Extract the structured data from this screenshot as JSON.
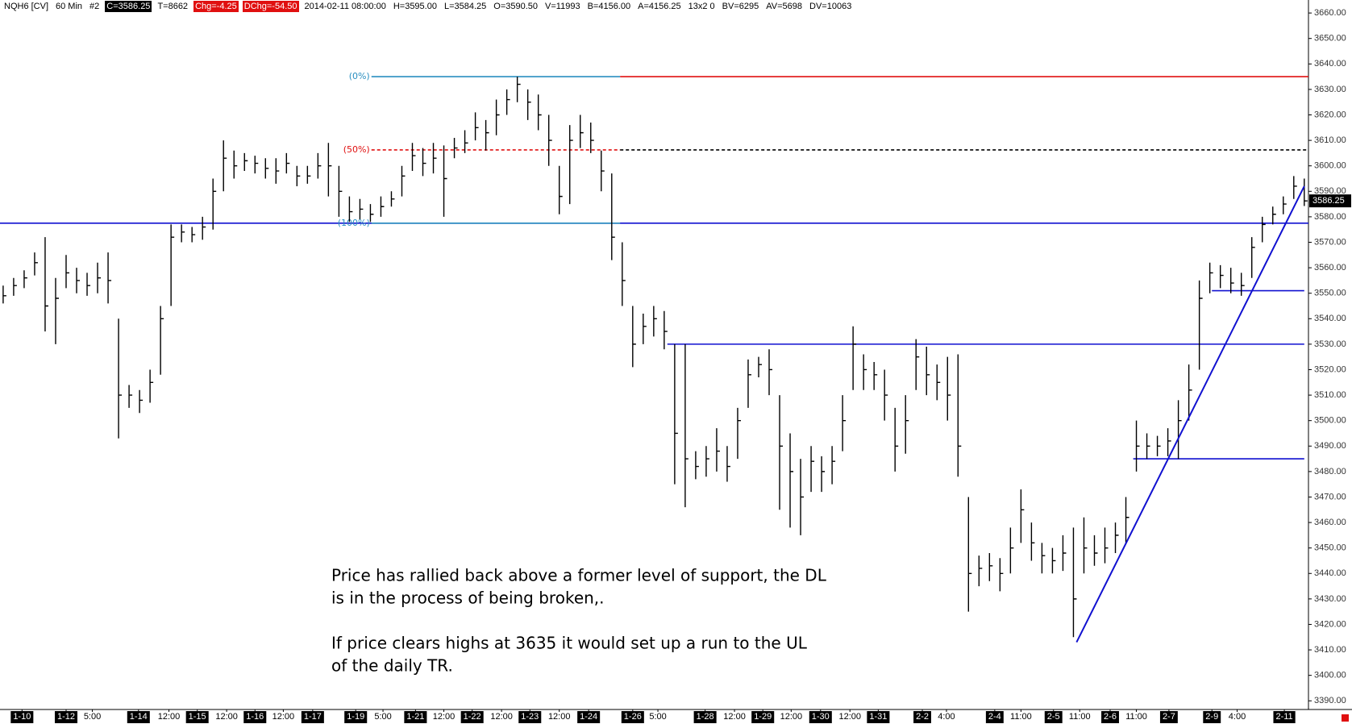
{
  "chart_data": {
    "type": "ohlc",
    "header": [
      {
        "text": "NQH6 [CV]",
        "style": "plain"
      },
      {
        "text": "60 Min",
        "style": "plain"
      },
      {
        "text": "#2",
        "style": "plain"
      },
      {
        "text": "C=3586.25",
        "style": "dark"
      },
      {
        "text": "T=8662",
        "style": "plain"
      },
      {
        "text": "Chg=-4.25",
        "style": "red"
      },
      {
        "text": "DChg=-54.50",
        "style": "red"
      },
      {
        "text": "2014-02-11 08:00:00",
        "style": "plain"
      },
      {
        "text": "H=3595.00",
        "style": "plain"
      },
      {
        "text": "L=3584.25",
        "style": "plain"
      },
      {
        "text": "O=3590.50",
        "style": "plain"
      },
      {
        "text": "V=11993",
        "style": "plain"
      },
      {
        "text": "B=4156.00",
        "style": "plain"
      },
      {
        "text": "A=4156.25",
        "style": "plain"
      },
      {
        "text": "13x2 0",
        "style": "plain"
      },
      {
        "text": "BV=6295",
        "style": "plain"
      },
      {
        "text": "AV=5698",
        "style": "plain"
      },
      {
        "text": "DV=10063",
        "style": "plain"
      }
    ],
    "color": "#000000",
    "high": [
      3553,
      3556,
      3559,
      3566,
      3572,
      3556,
      3565,
      3560,
      3558,
      3562,
      3566,
      3540,
      3514,
      3512,
      3520,
      3545,
      3577,
      3577,
      3576,
      3580,
      3595,
      3610,
      3606,
      3605,
      3604,
      3603,
      3603,
      3605,
      3600,
      3600,
      3605,
      3609,
      3600,
      3588,
      3587,
      3585,
      3588,
      3590,
      3600,
      3609,
      3607,
      3609,
      3608,
      3611,
      3614,
      3621,
      3618,
      3626,
      3630,
      3635,
      3630,
      3628,
      3620,
      3600,
      3616,
      3620,
      3617,
      3606,
      3597,
      3570,
      3545,
      3542,
      3545,
      3543,
      3530,
      3530,
      3488,
      3490,
      3497,
      3490,
      3505,
      3524,
      3525,
      3528,
      3510,
      3495,
      3485,
      3490,
      3486,
      3490,
      3510,
      3537,
      3526,
      3523,
      3520,
      3505,
      3510,
      3532,
      3529,
      3522,
      3525,
      3526,
      3470,
      3447,
      3448,
      3446,
      3458,
      3473,
      3460,
      3452,
      3450,
      3455,
      3458,
      3462,
      3455,
      3458,
      3460,
      3470,
      3500,
      3495,
      3494,
      3497,
      3508,
      3522,
      3555,
      3562,
      3561,
      3560,
      3558,
      3572,
      3580,
      3584,
      3588,
      3596,
      3595
    ],
    "low": [
      3546,
      3549,
      3552,
      3557,
      3535,
      3530,
      3552,
      3550,
      3549,
      3550,
      3546,
      3493,
      3505,
      3503,
      3507,
      3518,
      3545,
      3570,
      3570,
      3571,
      3575,
      3590,
      3595,
      3598,
      3597,
      3595,
      3593,
      3597,
      3592,
      3593,
      3595,
      3588,
      3580,
      3578,
      3579,
      3578,
      3580,
      3584,
      3588,
      3598,
      3596,
      3597,
      3580,
      3603,
      3605,
      3610,
      3606,
      3612,
      3620,
      3625,
      3618,
      3614,
      3600,
      3581,
      3585,
      3607,
      3605,
      3590,
      3563,
      3545,
      3521,
      3530,
      3533,
      3528,
      3475,
      3466,
      3477,
      3478,
      3480,
      3476,
      3485,
      3505,
      3517,
      3510,
      3465,
      3458,
      3455,
      3472,
      3472,
      3475,
      3488,
      3512,
      3512,
      3512,
      3500,
      3480,
      3487,
      3512,
      3510,
      3508,
      3500,
      3478,
      3425,
      3435,
      3437,
      3433,
      3440,
      3452,
      3445,
      3440,
      3440,
      3441,
      3415,
      3440,
      3443,
      3444,
      3448,
      3452,
      3480,
      3485,
      3486,
      3486,
      3485,
      3500,
      3520,
      3550,
      3552,
      3550,
      3549,
      3556,
      3570,
      3577,
      3581,
      3587,
      3584.25
    ],
    "close": [
      3549,
      3553,
      3556,
      3562,
      3545,
      3548,
      3558,
      3555,
      3553,
      3556,
      3555,
      3510,
      3510,
      3508,
      3515,
      3540,
      3572,
      3574,
      3573,
      3576,
      3590,
      3603,
      3600,
      3602,
      3601,
      3599,
      3598,
      3601,
      3596,
      3596,
      3600,
      3600,
      3590,
      3582,
      3583,
      3581,
      3584,
      3587,
      3596,
      3604,
      3601,
      3603,
      3595,
      3607,
      3609,
      3615,
      3613,
      3620,
      3626,
      3632,
      3625,
      3620,
      3610,
      3588,
      3610,
      3613,
      3610,
      3598,
      3572,
      3555,
      3530,
      3537,
      3540,
      3535,
      3495,
      3485,
      3482,
      3485,
      3488,
      3482,
      3500,
      3518,
      3522,
      3520,
      3490,
      3480,
      3470,
      3484,
      3480,
      3484,
      3500,
      3530,
      3520,
      3518,
      3510,
      3490,
      3500,
      3525,
      3518,
      3515,
      3510,
      3490,
      3440,
      3442,
      3443,
      3440,
      3450,
      3465,
      3452,
      3447,
      3445,
      3448,
      3430,
      3450,
      3448,
      3450,
      3455,
      3462,
      3490,
      3490,
      3490,
      3492,
      3500,
      3512,
      3548,
      3558,
      3557,
      3554,
      3553,
      3568,
      3577,
      3581,
      3585,
      3592,
      3586.25
    ],
    "xlim": [
      -0.3,
      124.4
    ],
    "ylim": [
      3386.6,
      3665.1
    ],
    "yticks": [
      {
        "value": 3390,
        "label": "3390.00"
      },
      {
        "value": 3400,
        "label": "3400.00"
      },
      {
        "value": 3410,
        "label": "3410.00"
      },
      {
        "value": 3420,
        "label": "3420.00"
      },
      {
        "value": 3430,
        "label": "3430.00"
      },
      {
        "value": 3440,
        "label": "3440.00"
      },
      {
        "value": 3450,
        "label": "3450.00"
      },
      {
        "value": 3460,
        "label": "3460.00"
      },
      {
        "value": 3470,
        "label": "3470.00"
      },
      {
        "value": 3480,
        "label": "3480.00"
      },
      {
        "value": 3490,
        "label": "3490.00"
      },
      {
        "value": 3500,
        "label": "3500.00"
      },
      {
        "value": 3510,
        "label": "3510.00"
      },
      {
        "value": 3520,
        "label": "3520.00"
      },
      {
        "value": 3530,
        "label": "3530.00"
      },
      {
        "value": 3540,
        "label": "3540.00"
      },
      {
        "value": 3550,
        "label": "3550.00"
      },
      {
        "value": 3560,
        "label": "3560.00"
      },
      {
        "value": 3570,
        "label": "3570.00"
      },
      {
        "value": 3580,
        "label": "3580.00"
      },
      {
        "value": 3590,
        "label": "3590.00"
      },
      {
        "value": 3600,
        "label": "3600.00"
      },
      {
        "value": 3610,
        "label": "3610.00"
      },
      {
        "value": 3620,
        "label": "3620.00"
      },
      {
        "value": 3630,
        "label": "3630.00"
      },
      {
        "value": 3640,
        "label": "3640.00"
      },
      {
        "value": 3650,
        "label": "3650.00"
      },
      {
        "value": 3660,
        "label": "3660.00"
      }
    ],
    "xticks": [
      {
        "value": 1.8,
        "label": "1-10"
      },
      {
        "value": 6,
        "label": "1-12"
      },
      {
        "value": 12.9,
        "label": "1-14"
      },
      {
        "value": 18.5,
        "label": "1-15"
      },
      {
        "value": 24,
        "label": "1-16"
      },
      {
        "value": 29.5,
        "label": "1-17"
      },
      {
        "value": 33.6,
        "label": "1-19"
      },
      {
        "value": 39.3,
        "label": "1-21"
      },
      {
        "value": 44.7,
        "label": "1-22"
      },
      {
        "value": 50.2,
        "label": "1-23"
      },
      {
        "value": 55.8,
        "label": "1-24"
      },
      {
        "value": 60,
        "label": "1-26"
      },
      {
        "value": 66.9,
        "label": "1-28"
      },
      {
        "value": 72.4,
        "label": "1-29"
      },
      {
        "value": 77.9,
        "label": "1-30"
      },
      {
        "value": 83.4,
        "label": "1-31"
      },
      {
        "value": 87.6,
        "label": "2-2"
      },
      {
        "value": 94.5,
        "label": "2-4"
      },
      {
        "value": 100.1,
        "label": "2-5"
      },
      {
        "value": 105.5,
        "label": "2-6"
      },
      {
        "value": 111.1,
        "label": "2-7"
      },
      {
        "value": 115.2,
        "label": "2-9"
      },
      {
        "value": 122.1,
        "label": "2-11"
      }
    ],
    "xticks_minor": [
      {
        "value": 8.5,
        "label": "5:00"
      },
      {
        "value": 15.8,
        "label": "12:00"
      },
      {
        "value": 21.3,
        "label": "12:00"
      },
      {
        "value": 26.7,
        "label": "12:00"
      },
      {
        "value": 36.2,
        "label": "5:00"
      },
      {
        "value": 42,
        "label": "12:00"
      },
      {
        "value": 47.5,
        "label": "12:00"
      },
      {
        "value": 53,
        "label": "12:00"
      },
      {
        "value": 62.4,
        "label": "5:00"
      },
      {
        "value": 69.7,
        "label": "12:00"
      },
      {
        "value": 75.1,
        "label": "12:00"
      },
      {
        "value": 80.7,
        "label": "12:00"
      },
      {
        "value": 89.9,
        "label": "4:00"
      },
      {
        "value": 97,
        "label": "11:00"
      },
      {
        "value": 102.6,
        "label": "11:00"
      },
      {
        "value": 108,
        "label": "11:00"
      },
      {
        "value": 117.6,
        "label": "4:00"
      }
    ],
    "levels": [
      {
        "price": 3635,
        "x": [
          35.1,
          58.8
        ],
        "color": "#2a8fc0",
        "label": "(0%)"
      },
      {
        "price": 3635,
        "x": [
          58.8,
          124.4
        ],
        "color": "#e01010"
      },
      {
        "price": 3606.25,
        "x": [
          35.1,
          58.8
        ],
        "color": "#e01010",
        "dash": true,
        "label": "(50%)"
      },
      {
        "price": 3606.25,
        "x": [
          58.8,
          124.4
        ],
        "color": "#000000",
        "dash": true
      },
      {
        "price": 3577.5,
        "x": [
          -0.3,
          124.4
        ],
        "color": "#1010d0"
      },
      {
        "price": 3577.5,
        "x": [
          35.1,
          58.8
        ],
        "color": "#2a8fc0",
        "label": "(100%)"
      },
      {
        "price": 3530,
        "x": [
          63.3,
          124
        ],
        "color": "#1010d0"
      },
      {
        "price": 3551,
        "x": [
          115.2,
          124
        ],
        "color": "#1010d0"
      },
      {
        "price": 3485,
        "x": [
          107.7,
          124
        ],
        "color": "#1010d0"
      }
    ],
    "trendline": {
      "x": [
        102.3,
        124
      ],
      "y": [
        3413,
        3592
      ],
      "color": "#1010d0"
    },
    "annotation": [
      [
        "Price has rallied back above a former level of support, the DL",
        "is in the process of being broken,."
      ],
      [
        "If price clears highs at 3635 it would set up a run to the UL",
        "of the daily TR."
      ]
    ]
  }
}
